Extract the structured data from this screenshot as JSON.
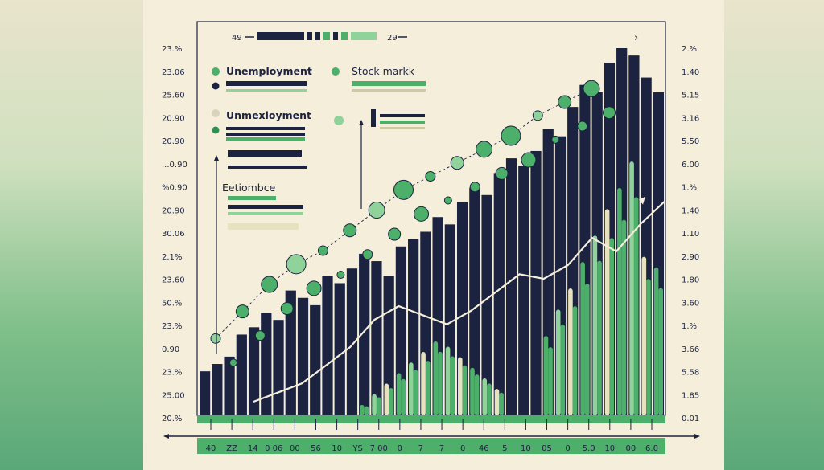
{
  "colors": {
    "navy": "#1c2340",
    "green": "#4caf6a",
    "light_green": "#8fd39a",
    "cream": "#e6e1bf",
    "line_cream": "#f4eedb",
    "accent": "#2f8f4e"
  },
  "top_bar": {
    "left_value": "49",
    "right_value": "29"
  },
  "legend": {
    "item1": "Unemployment",
    "item2": "Stock markk",
    "item3": "Unmexloyment",
    "item4": "Eetiombce"
  },
  "chart_data": {
    "type": "bar",
    "title": "",
    "left_ticks": [
      "23.%",
      "23.06",
      "25.60",
      "20.90",
      "20.90",
      "...0.90",
      "%0.90",
      "20.90",
      "30.06",
      "2.1%",
      "23.60",
      "50.%",
      "23.%",
      "0.90",
      "23.%",
      "25.00",
      "20.%"
    ],
    "right_ticks": [
      "2.%",
      "1.40",
      "5.15",
      "3.16",
      "5.50",
      "6.00",
      "1.%",
      "1.40",
      "1.10",
      "2.90",
      "1.80",
      "3.60",
      "1.%",
      "3.66",
      "5.58",
      "1.85",
      "0.01"
    ],
    "x_ticks": [
      "40",
      "ZZ",
      "14",
      "0 06",
      "00",
      "56",
      "10",
      "YS",
      "7 00",
      "0",
      "7",
      "7",
      "0",
      "46",
      "5",
      "10",
      "05",
      "0",
      "5.0",
      "10",
      "00",
      "6.0"
    ],
    "series": [
      {
        "values": [
          12,
          14,
          16,
          22,
          24,
          28,
          26,
          34,
          32,
          30,
          38,
          36,
          40,
          44,
          42,
          38,
          46,
          48,
          50,
          54,
          52,
          58,
          62,
          60,
          66,
          70,
          68,
          72,
          78,
          76,
          84,
          90,
          88,
          96,
          100,
          98,
          92,
          88
        ]
      },
      {
        "values": [
          0,
          0,
          0,
          0,
          0,
          0,
          0,
          0,
          0,
          0,
          0,
          0,
          0,
          4,
          8,
          12,
          16,
          20,
          24,
          28,
          26,
          22,
          18,
          14,
          10,
          0,
          0,
          0,
          30,
          40,
          48,
          58,
          68,
          78,
          86,
          96,
          60,
          56
        ]
      }
    ],
    "trend_line": [
      6,
      10,
      14,
      22,
      30,
      42,
      48,
      44,
      40,
      46,
      54,
      62,
      60,
      66,
      78,
      72,
      84,
      94
    ],
    "bubbles": [
      {
        "x": 1,
        "y": 18
      },
      {
        "x": 2,
        "y": 26
      },
      {
        "x": 3,
        "y": 34
      },
      {
        "x": 4,
        "y": 40
      },
      {
        "x": 5,
        "y": 44
      },
      {
        "x": 6,
        "y": 50
      },
      {
        "x": 7,
        "y": 56
      },
      {
        "x": 8,
        "y": 62
      },
      {
        "x": 9,
        "y": 66
      },
      {
        "x": 10,
        "y": 70
      },
      {
        "x": 11,
        "y": 74
      },
      {
        "x": 12,
        "y": 78
      },
      {
        "x": 13,
        "y": 84
      },
      {
        "x": 14,
        "y": 88
      },
      {
        "x": 15,
        "y": 92
      }
    ]
  }
}
